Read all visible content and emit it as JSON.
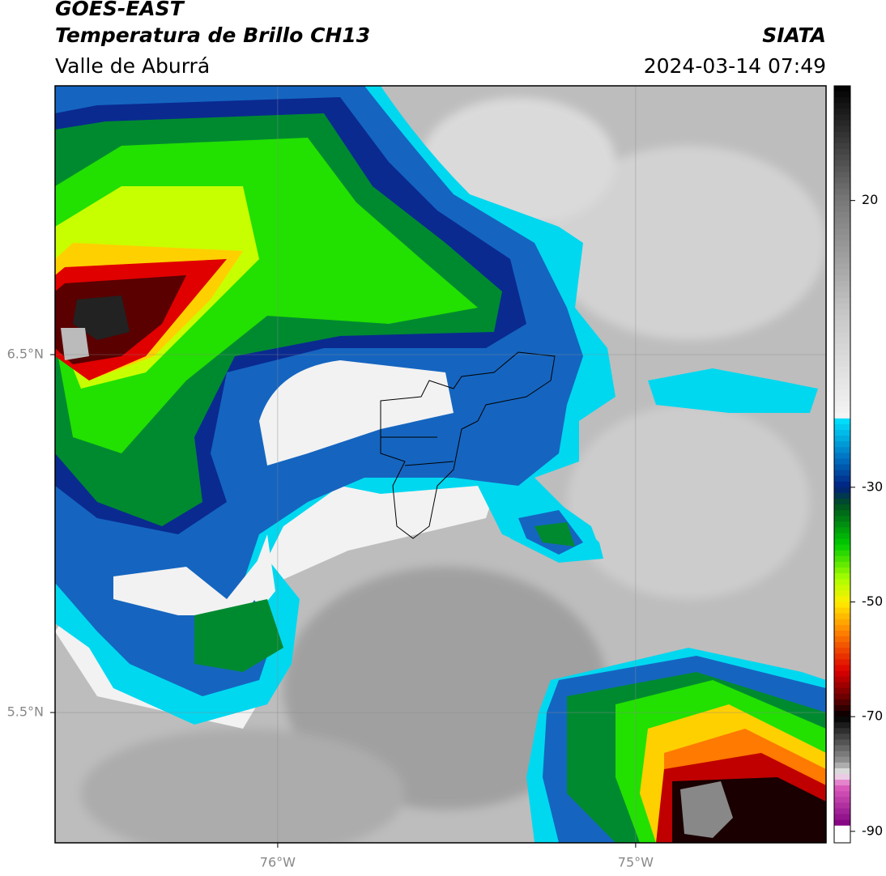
{
  "header": {
    "title": "GOES-EAST",
    "subtitle": "Temperatura de Brillo CH13",
    "region": "Valle de Aburrá",
    "source": "SIATA",
    "datetime": "2024-03-14 07:49"
  },
  "map": {
    "xlim": [
      -76.622,
      -74.468
    ],
    "ylim": [
      5.136,
      7.251
    ],
    "xticks": [
      {
        "value": -76,
        "label": "76°W"
      },
      {
        "value": -75,
        "label": "75°W"
      }
    ],
    "yticks": [
      {
        "value": 6.5,
        "label": "6.5°N"
      },
      {
        "value": 5.5,
        "label": "5.5°N"
      }
    ]
  },
  "colorbar": {
    "lim": [
      -92,
      40
    ],
    "ticks": [
      20,
      -30,
      -50,
      -70,
      -90
    ]
  }
}
